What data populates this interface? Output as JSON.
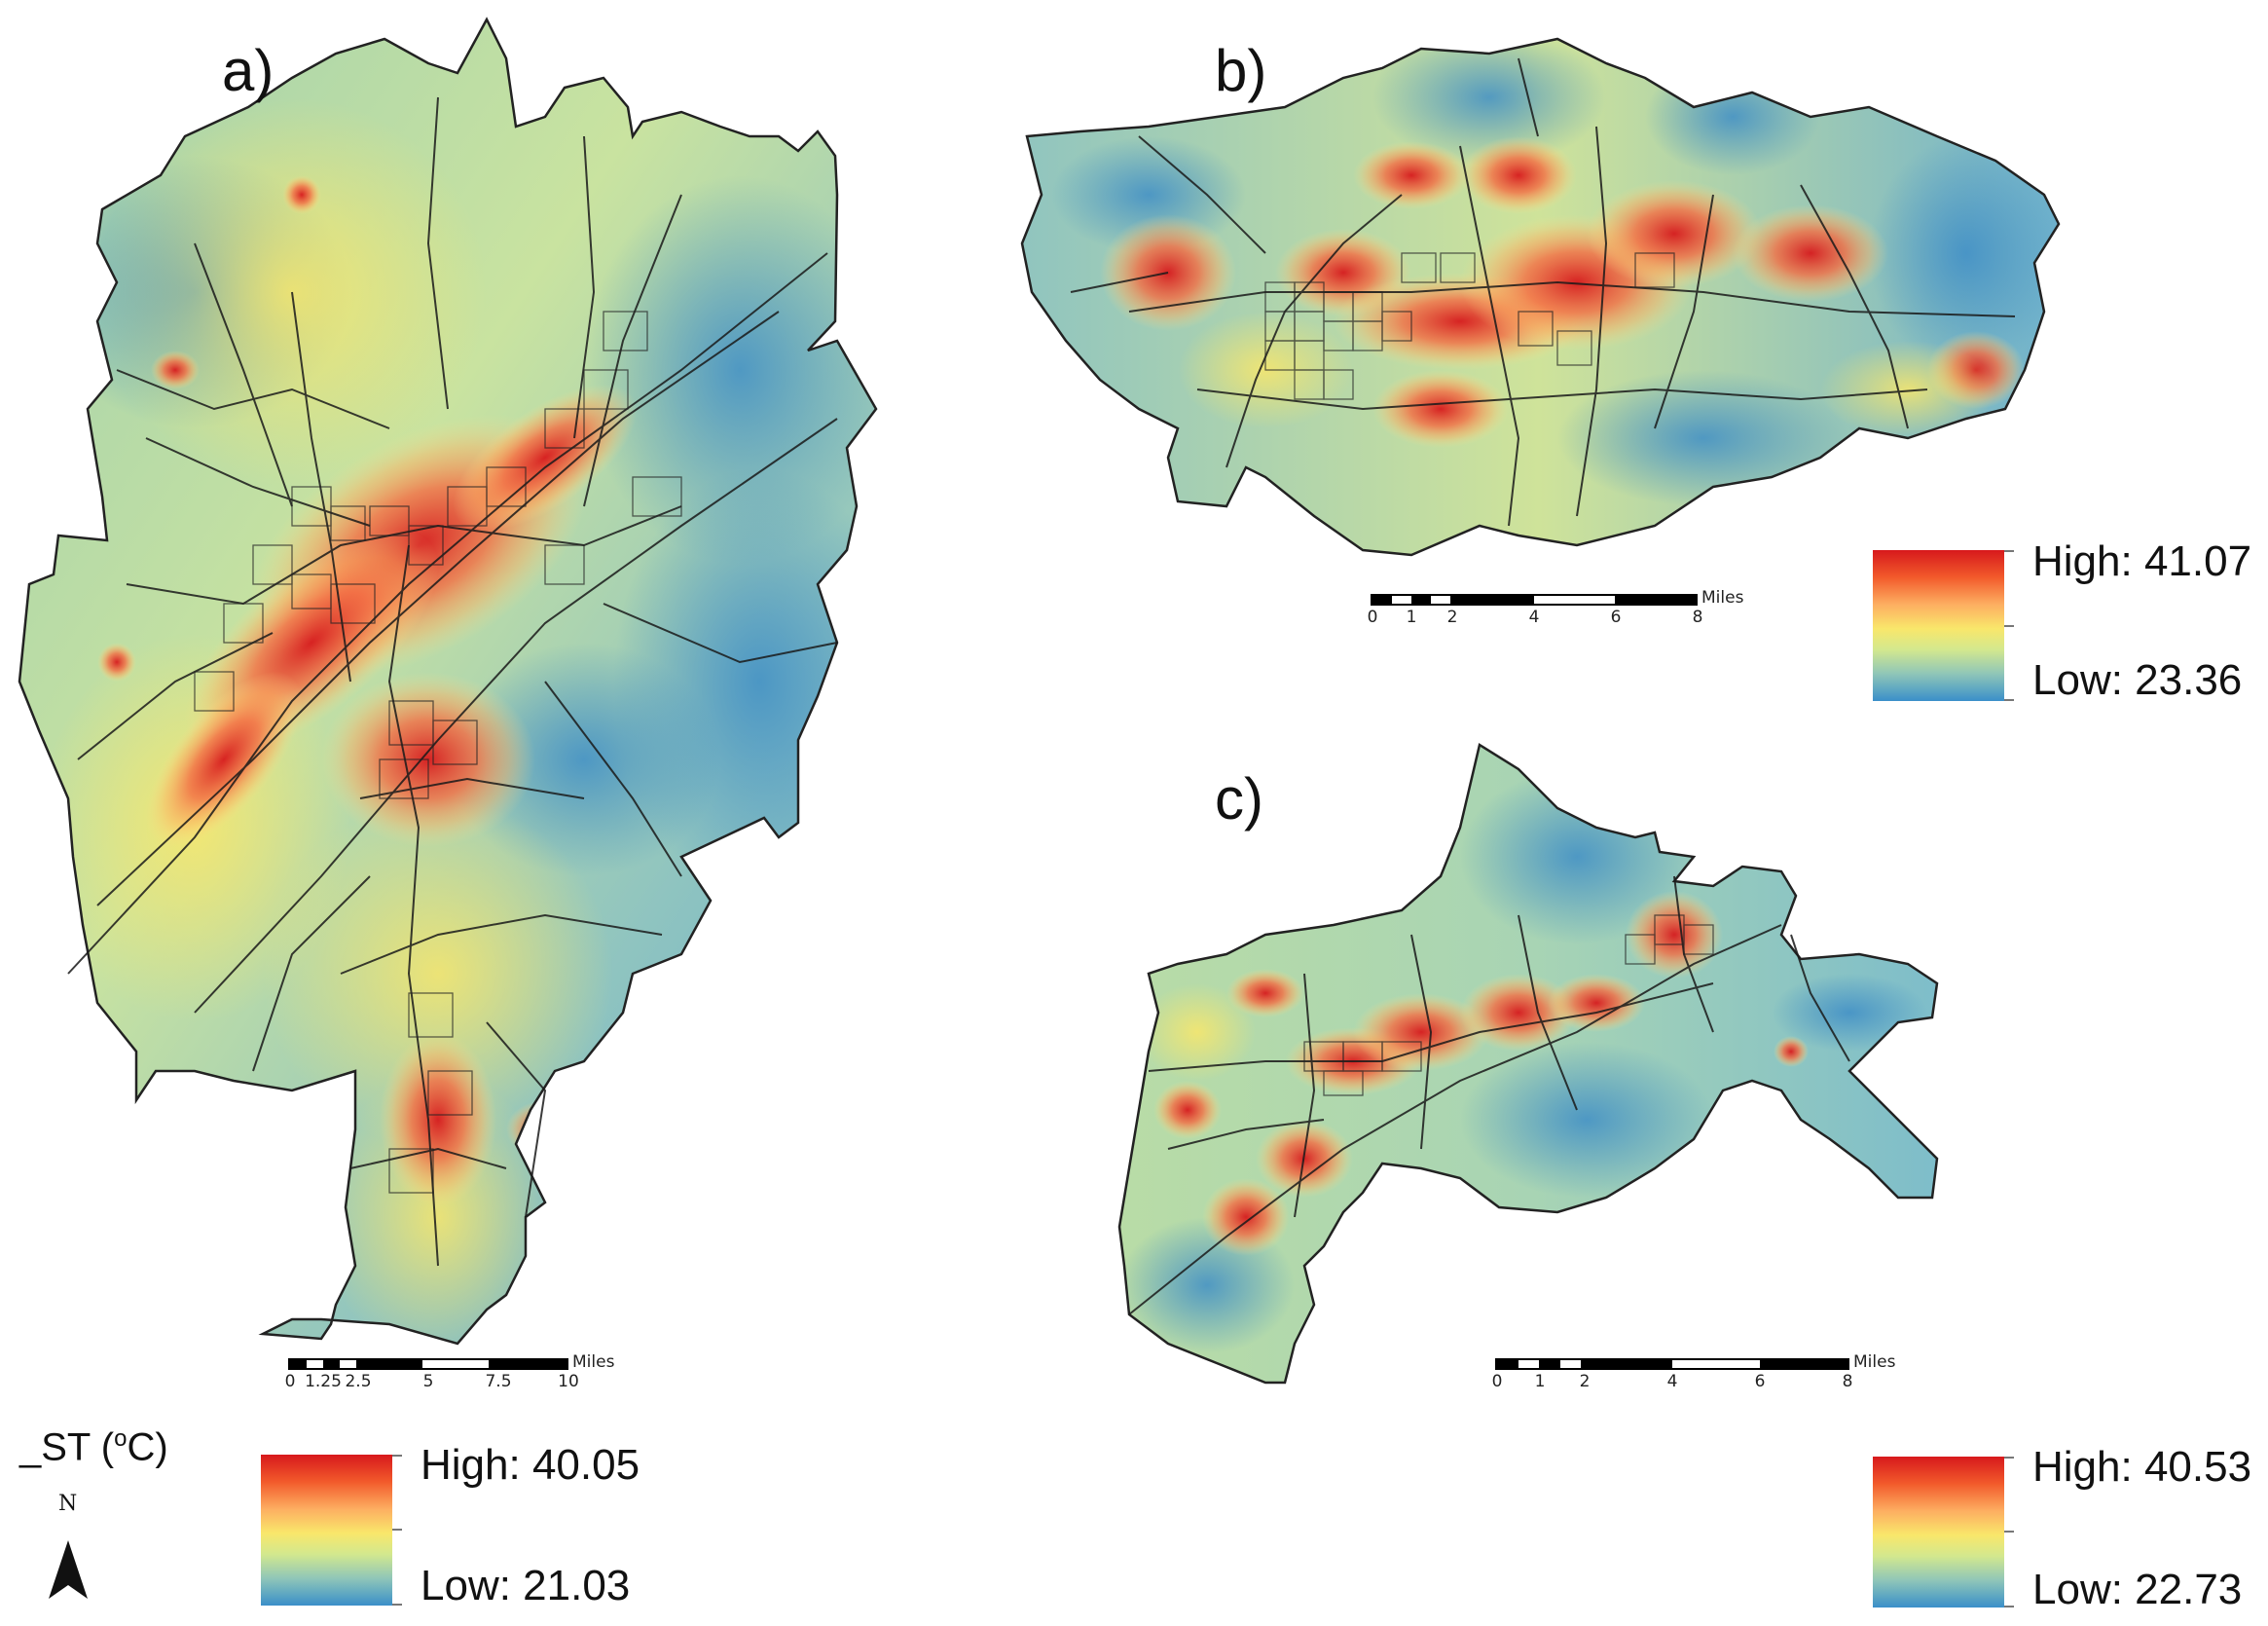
{
  "panels": {
    "a": {
      "label": "a)"
    },
    "b": {
      "label": "b)"
    },
    "c": {
      "label": "c)"
    }
  },
  "scalebars": {
    "a": {
      "unit": "Miles",
      "ticks": [
        "0",
        "1.25",
        "2.5",
        "5",
        "7.5",
        "10"
      ]
    },
    "b": {
      "unit": "Miles",
      "ticks": [
        "0",
        "1",
        "2",
        "4",
        "6",
        "8"
      ]
    },
    "c": {
      "unit": "Miles",
      "ticks": [
        "0",
        "1",
        "2",
        "4",
        "6",
        "8"
      ]
    }
  },
  "legends": {
    "a": {
      "high": "High: 40.05",
      "low": "Low: 21.03"
    },
    "b": {
      "high": "High: 41.07",
      "low": "Low: 23.36"
    },
    "c": {
      "high": "High: 40.53",
      "low": "Low: 22.73"
    }
  },
  "lst_title": {
    "prefix": "_ST (",
    "sup": "o",
    "suffix": "C)"
  },
  "north_arrow": {
    "label": "N",
    "icon": "north-arrow-icon"
  },
  "colors": {
    "high": "#d7191c",
    "mid": "#f9e76b",
    "low": "#3a8fc9",
    "boundary": "#222222"
  }
}
